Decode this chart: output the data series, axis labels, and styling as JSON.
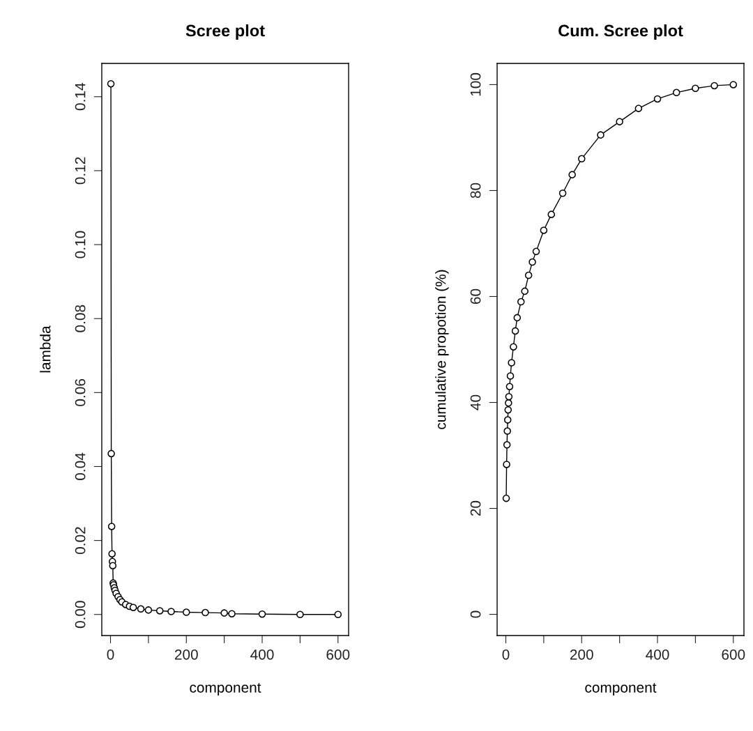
{
  "chart_data": [
    {
      "type": "line",
      "title": "Scree plot",
      "xlabel": "component",
      "ylabel": "lambda",
      "marker": "circle",
      "line_style": "solid",
      "grid": false,
      "xlim": [
        -23,
        628
      ],
      "ylim": [
        -0.0057,
        0.149
      ],
      "xticks": [
        0,
        {
          "value": 100,
          "label": null
        },
        200,
        {
          "value": 300,
          "label": null
        },
        400,
        {
          "value": 500,
          "label": null
        },
        600
      ],
      "yticks": [
        {
          "value": 0,
          "label": "0.00"
        },
        0.02,
        0.04,
        0.06,
        0.08,
        {
          "value": 0.1,
          "label": "0.10"
        },
        0.12,
        0.14
      ],
      "series": [
        {
          "color": "#000000",
          "x": [
            1,
            2,
            3,
            4,
            5,
            6,
            7,
            8,
            10,
            12,
            15,
            20,
            25,
            30,
            40,
            50,
            60,
            80,
            100,
            130,
            160,
            200,
            250,
            300,
            320,
            400,
            500,
            600
          ],
          "values": [
            0.1435,
            0.0435,
            0.0238,
            0.0164,
            0.0143,
            0.0132,
            0.0085,
            0.008,
            0.0072,
            0.0065,
            0.0057,
            0.0048,
            0.004,
            0.0034,
            0.0027,
            0.0022,
            0.0019,
            0.0015,
            0.0012,
            0.001,
            0.0008,
            0.0006,
            0.0005,
            0.0004,
            0.0002,
            0.0001,
            0.0,
            0.0
          ]
        }
      ]
    },
    {
      "type": "line",
      "title": "Cum. Scree plot",
      "xlabel": "component",
      "ylabel": "cumulative propotion (%)",
      "marker": "circle",
      "line_style": "solid",
      "grid": false,
      "xlim": [
        -23,
        628
      ],
      "ylim": [
        -4,
        104
      ],
      "xticks": [
        0,
        {
          "value": 100,
          "label": null
        },
        200,
        {
          "value": 300,
          "label": null
        },
        400,
        {
          "value": 500,
          "label": null
        },
        600
      ],
      "yticks": [
        0,
        20,
        40,
        60,
        80,
        100
      ],
      "series": [
        {
          "color": "#000000",
          "x": [
            1,
            2,
            3,
            4,
            5,
            6,
            7,
            8,
            10,
            12,
            15,
            20,
            25,
            30,
            40,
            50,
            60,
            70,
            80,
            100,
            120,
            150,
            175,
            200,
            250,
            300,
            350,
            400,
            450,
            500,
            550,
            600
          ],
          "values": [
            21.9,
            28.3,
            32.0,
            34.6,
            36.7,
            38.6,
            39.9,
            41.1,
            43,
            45,
            47.5,
            50.5,
            53.5,
            56,
            59,
            61,
            64,
            66.5,
            68.5,
            72.5,
            75.5,
            79.5,
            83,
            86,
            90.5,
            93,
            95.5,
            97.3,
            98.5,
            99.3,
            99.8,
            100
          ]
        }
      ]
    }
  ]
}
